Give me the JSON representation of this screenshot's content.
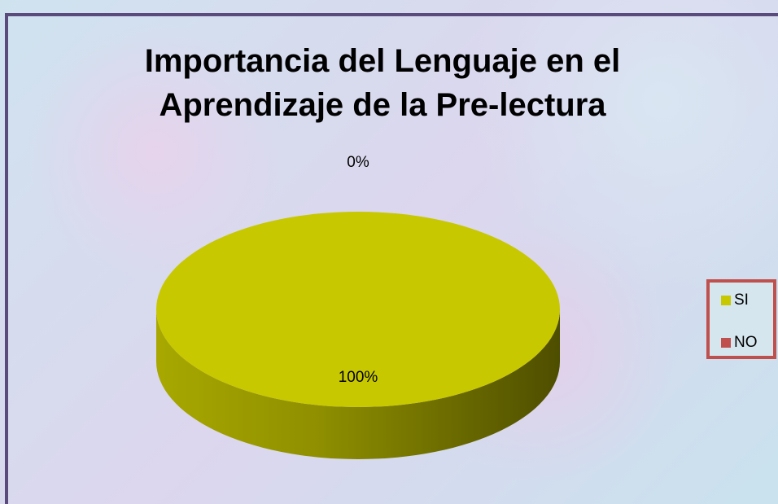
{
  "chart_data": {
    "type": "pie",
    "title": "Importancia del Lenguaje en el Aprendizaje de la Pre-lectura",
    "categories": [
      "SI",
      "NO"
    ],
    "values": [
      100,
      0
    ],
    "value_labels": [
      "100%",
      "0%"
    ],
    "colors": [
      "#c8c800",
      "#c0504d"
    ],
    "legend": "right"
  }
}
